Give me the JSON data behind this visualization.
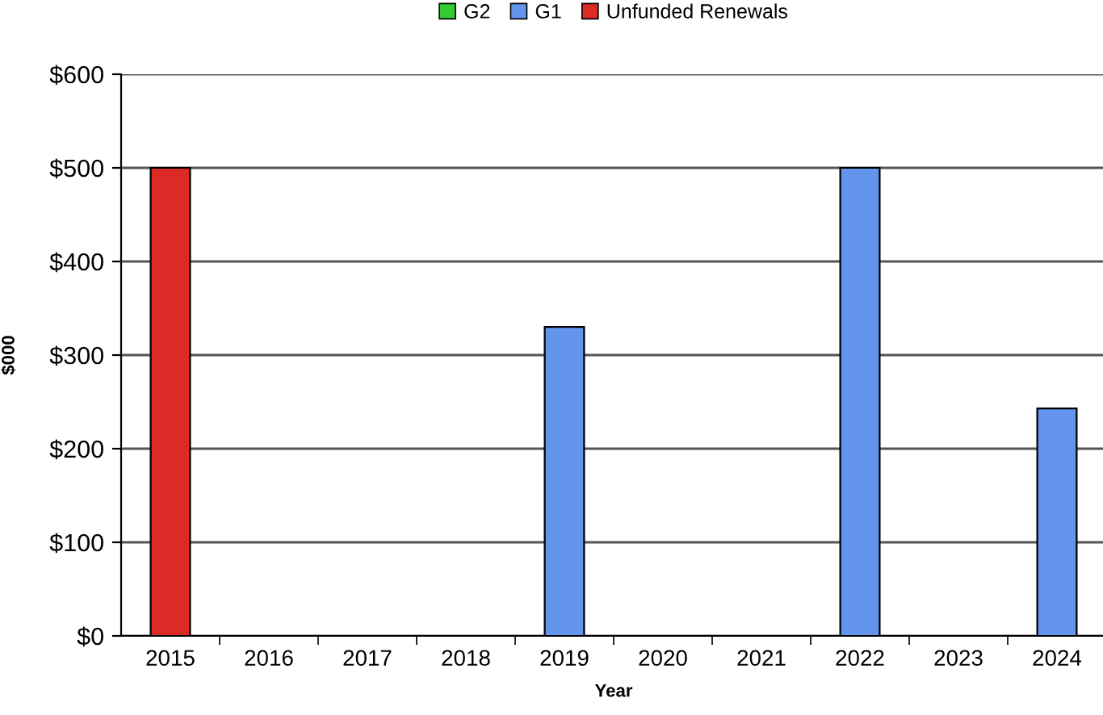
{
  "chart_data": {
    "type": "bar",
    "xlabel": "Year",
    "ylabel": "$000",
    "categories": [
      "2015",
      "2016",
      "2017",
      "2018",
      "2019",
      "2020",
      "2021",
      "2022",
      "2023",
      "2024"
    ],
    "series": [
      {
        "name": "G2",
        "color": "#33cc33",
        "values": [
          null,
          null,
          null,
          null,
          null,
          null,
          null,
          null,
          null,
          null
        ]
      },
      {
        "name": "G1",
        "color": "#6495ed",
        "values": [
          null,
          null,
          null,
          null,
          330,
          null,
          null,
          500,
          null,
          243
        ]
      },
      {
        "name": "Unfunded Renewals",
        "color": "#dc2a26",
        "values": [
          500,
          null,
          null,
          null,
          null,
          null,
          null,
          null,
          null,
          null
        ]
      }
    ],
    "ylim": [
      0,
      600
    ],
    "yticks": [
      {
        "value": 0,
        "label": "$0"
      },
      {
        "value": 100,
        "label": "$100"
      },
      {
        "value": 200,
        "label": "$200"
      },
      {
        "value": 300,
        "label": "$300"
      },
      {
        "value": 400,
        "label": "$400"
      },
      {
        "value": 500,
        "label": "$500"
      },
      {
        "value": 600,
        "label": "$600"
      }
    ],
    "grid": "y",
    "legend": "top"
  }
}
